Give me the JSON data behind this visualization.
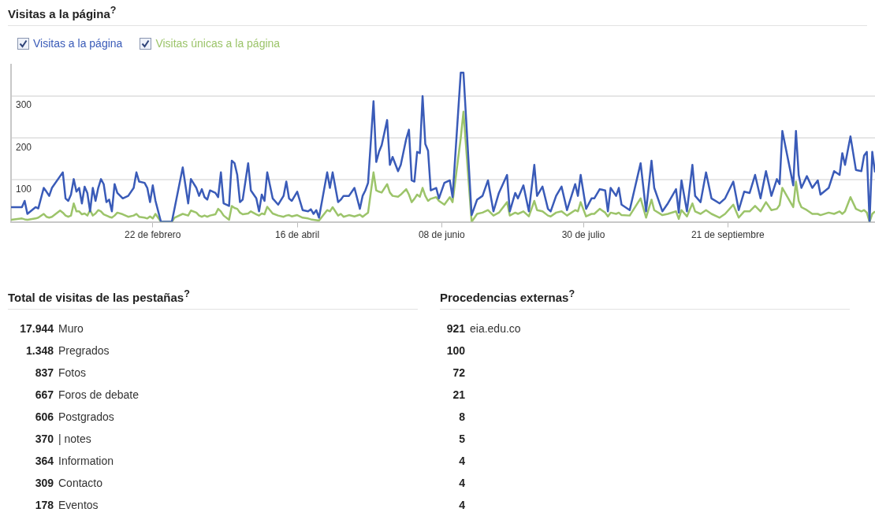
{
  "chart_data": [
    {
      "type": "line",
      "title": "Visitas a la página$^{?}$",
      "legend": "top left",
      "grid": "y",
      "marker": "none",
      "line_style": "solid",
      "x": [
        "--01-01",
        "--01-05",
        "--01-06",
        "--01-07",
        "--01-10",
        "--01-11",
        "--01-13",
        "--01-14",
        "--01-15",
        "--01-16",
        "--01-19",
        "--01-20",
        "--01-21",
        "--01-22",
        "--01-23",
        "--01-24",
        "--01-25",
        "--01-26",
        "--01-27",
        "--01-28",
        "--01-29",
        "--01-30",
        "--01-31",
        "--02-01",
        "--02-02",
        "--02-03",
        "--02-04",
        "--02-05",
        "--02-06",
        "--02-07",
        "--02-08",
        "--02-09",
        "--02-11",
        "--02-13",
        "--02-15",
        "--02-16",
        "--02-17",
        "--02-19",
        "--02-20",
        "--02-21",
        "--02-22",
        "--02-23",
        "--02-25",
        "--03-01",
        "--03-02",
        "--03-05",
        "--03-07",
        "--03-08",
        "--03-10",
        "--03-11",
        "--03-12",
        "--03-13",
        "--03-14",
        "--03-15",
        "--03-17",
        "--03-18",
        "--03-19",
        "--03-20",
        "--03-22",
        "--03-23",
        "--03-24",
        "--03-25",
        "--03-26",
        "--03-27",
        "--03-29",
        "--03-30",
        "--04-01",
        "--04-02",
        "--04-03",
        "--04-04",
        "--04-05",
        "--04-07",
        "--04-09",
        "--04-11",
        "--04-12",
        "--04-13",
        "--04-14",
        "--04-16",
        "--04-18",
        "--04-20",
        "--04-21",
        "--04-22",
        "--04-23",
        "--04-24",
        "--04-27",
        "--04-28",
        "--04-29",
        "--05-01",
        "--05-02",
        "--05-03",
        "--05-05",
        "--05-07",
        "--05-09",
        "--05-10",
        "--05-11",
        "--05-12",
        "--05-14",
        "--05-15",
        "--05-16",
        "--05-17",
        "--05-19",
        "--05-20",
        "--05-21",
        "--05-23",
        "--05-24",
        "--05-26",
        "--05-27",
        "--05-28",
        "--05-29",
        "--05-30",
        "--05-31",
        "--06-01",
        "--06-02",
        "--06-03",
        "--06-04",
        "--06-06",
        "--06-07",
        "--06-09",
        "--06-11",
        "--06-12",
        "--06-15",
        "--06-16",
        "--06-19",
        "--06-21",
        "--06-23",
        "--06-25",
        "--06-27",
        "--06-29",
        "--07-02",
        "--07-03",
        "--07-05",
        "--07-06",
        "--07-08",
        "--07-10",
        "--07-12",
        "--07-13",
        "--07-15",
        "--07-17",
        "--07-18",
        "--07-20",
        "--07-22",
        "--07-24",
        "--07-27",
        "--07-28",
        "--07-29",
        "--07-31",
        "--08-02",
        "--08-03",
        "--08-05",
        "--08-07",
        "--08-08",
        "--08-09",
        "--08-11",
        "--08-12",
        "--08-13",
        "--08-16",
        "--08-20",
        "--08-22",
        "--08-24",
        "--08-25",
        "--08-28",
        "--08-30",
        "--09-02",
        "--09-03",
        "--09-04",
        "--09-06",
        "--09-08",
        "--09-09",
        "--09-11",
        "--09-13",
        "--09-15",
        "--09-18",
        "--09-20",
        "--09-23",
        "--09-25",
        "--09-27",
        "--09-29",
        "--10-01",
        "--10-03",
        "--10-05",
        "--10-07",
        "--10-09",
        "--10-10",
        "--10-11",
        "--10-15",
        "--10-16",
        "--10-17",
        "--10-18",
        "--10-20",
        "--10-22",
        "--10-24",
        "--10-25",
        "--10-28",
        "--10-30",
        "--11-01",
        "--11-02",
        "--11-03",
        "--11-05",
        "--11-07",
        "--11-09",
        "--11-10",
        "--11-11",
        "--11-12",
        "--11-13",
        "--11-14"
      ],
      "xlim": [
        "--01-01",
        "--11-14"
      ],
      "xticks": [
        {
          "value": "--02-22",
          "label": "22 de febrero"
        },
        {
          "value": "--04-16",
          "label": "16 de abril"
        },
        {
          "value": "--06-08",
          "label": "08 de junio"
        },
        {
          "value": "--07-30",
          "label": "30 de julio"
        },
        {
          "value": "--09-21",
          "label": "21 de septiembre"
        }
      ],
      "ylim": [
        0,
        375
      ],
      "yticks": [
        100,
        200,
        300
      ],
      "series": [
        {
          "name": "Visitas a la página",
          "color": "#3a5bb8",
          "values": [
            35,
            35,
            50,
            19,
            35,
            32,
            81,
            72,
            62,
            81,
            109,
            118,
            56,
            50,
            65,
            102,
            72,
            81,
            44,
            84,
            69,
            25,
            81,
            50,
            81,
            102,
            90,
            47,
            53,
            25,
            90,
            69,
            56,
            62,
            81,
            118,
            96,
            93,
            81,
            47,
            87,
            50,
            0,
            0,
            32,
            130,
            44,
            102,
            81,
            62,
            78,
            59,
            53,
            75,
            69,
            59,
            118,
            44,
            38,
            146,
            140,
            112,
            47,
            53,
            140,
            75,
            56,
            25,
            65,
            50,
            118,
            56,
            41,
            62,
            96,
            56,
            50,
            72,
            28,
            25,
            30,
            19,
            28,
            10,
            118,
            81,
            118,
            47,
            53,
            62,
            62,
            81,
            31,
            62,
            75,
            93,
            288,
            143,
            167,
            183,
            243,
            136,
            155,
            121,
            136,
            198,
            220,
            99,
            96,
            167,
            164,
            300,
            186,
            170,
            75,
            81,
            56,
            93,
            99,
            59,
            356,
            356,
            16,
            53,
            62,
            99,
            25,
            69,
            112,
            25,
            69,
            56,
            87,
            25,
            136,
            62,
            84,
            31,
            25,
            62,
            84,
            28,
            90,
            62,
            112,
            31,
            56,
            56,
            78,
            75,
            25,
            81,
            62,
            81,
            41,
            28,
            140,
            25,
            146,
            81,
            25,
            44,
            78,
            22,
            99,
            25,
            136,
            62,
            47,
            118,
            56,
            44,
            56,
            96,
            28,
            72,
            69,
            112,
            56,
            121,
            62,
            102,
            90,
            217,
            87,
            217,
            112,
            81,
            109,
            81,
            99,
            65,
            81,
            121,
            112,
            164,
            136,
            204,
            124,
            121,
            158,
            167,
            0,
            167,
            118
          ]
        },
        {
          "name": "Visitas únicas a la página",
          "color": "#9cc46a",
          "values": [
            5,
            8,
            6,
            5,
            8,
            10,
            19,
            12,
            10,
            12,
            27,
            22,
            15,
            12,
            15,
            44,
            25,
            25,
            18,
            20,
            15,
            28,
            15,
            20,
            28,
            25,
            18,
            15,
            12,
            10,
            15,
            22,
            18,
            12,
            15,
            19,
            12,
            10,
            8,
            13,
            8,
            19,
            0,
            0,
            10,
            19,
            15,
            27,
            22,
            15,
            12,
            15,
            12,
            15,
            18,
            31,
            25,
            15,
            5,
            38,
            33,
            31,
            22,
            18,
            20,
            25,
            18,
            15,
            20,
            18,
            36,
            20,
            15,
            12,
            15,
            16,
            13,
            16,
            10,
            8,
            6,
            5,
            4,
            3,
            28,
            25,
            35,
            15,
            19,
            12,
            16,
            13,
            17,
            12,
            17,
            22,
            118,
            75,
            72,
            70,
            90,
            70,
            62,
            60,
            65,
            78,
            65,
            47,
            55,
            65,
            60,
            81,
            62,
            50,
            55,
            59,
            50,
            41,
            59,
            47,
            200,
            263,
            0,
            19,
            22,
            28,
            15,
            22,
            47,
            15,
            22,
            19,
            25,
            13,
            50,
            28,
            25,
            15,
            13,
            22,
            25,
            15,
            28,
            25,
            47,
            13,
            19,
            19,
            31,
            22,
            13,
            22,
            19,
            22,
            16,
            15,
            56,
            10,
            53,
            28,
            16,
            19,
            25,
            7,
            28,
            13,
            44,
            25,
            19,
            28,
            19,
            10,
            19,
            41,
            10,
            25,
            25,
            38,
            25,
            47,
            28,
            31,
            40,
            81,
            35,
            96,
            50,
            35,
            28,
            19,
            19,
            16,
            22,
            19,
            25,
            19,
            25,
            59,
            31,
            25,
            28,
            22,
            0,
            19,
            25
          ]
        }
      ]
    },
    {
      "type": "other",
      "title": "Total de visitas de las pestañas$^{?}$",
      "data_labels": true,
      "categories": [
        "Muro",
        "Pregrados",
        "Fotos",
        "Foros de debate",
        "Postgrados",
        "| notes",
        "Information",
        "Contacto",
        "Eventos"
      ],
      "values": [
        17944,
        1348,
        837,
        667,
        606,
        370,
        364,
        309,
        178
      ],
      "value_labels": [
        "17.944",
        "1.348",
        "837",
        "667",
        "606",
        "370",
        "364",
        "309",
        "178"
      ]
    },
    {
      "type": "other",
      "title": "Procedencias externas$^{?}$",
      "data_labels": true,
      "categories": [
        "eia.edu.co",
        null,
        null,
        null,
        null,
        null,
        null,
        null,
        null
      ],
      "values": [
        921,
        100,
        72,
        21,
        8,
        5,
        4,
        4,
        4
      ]
    }
  ]
}
